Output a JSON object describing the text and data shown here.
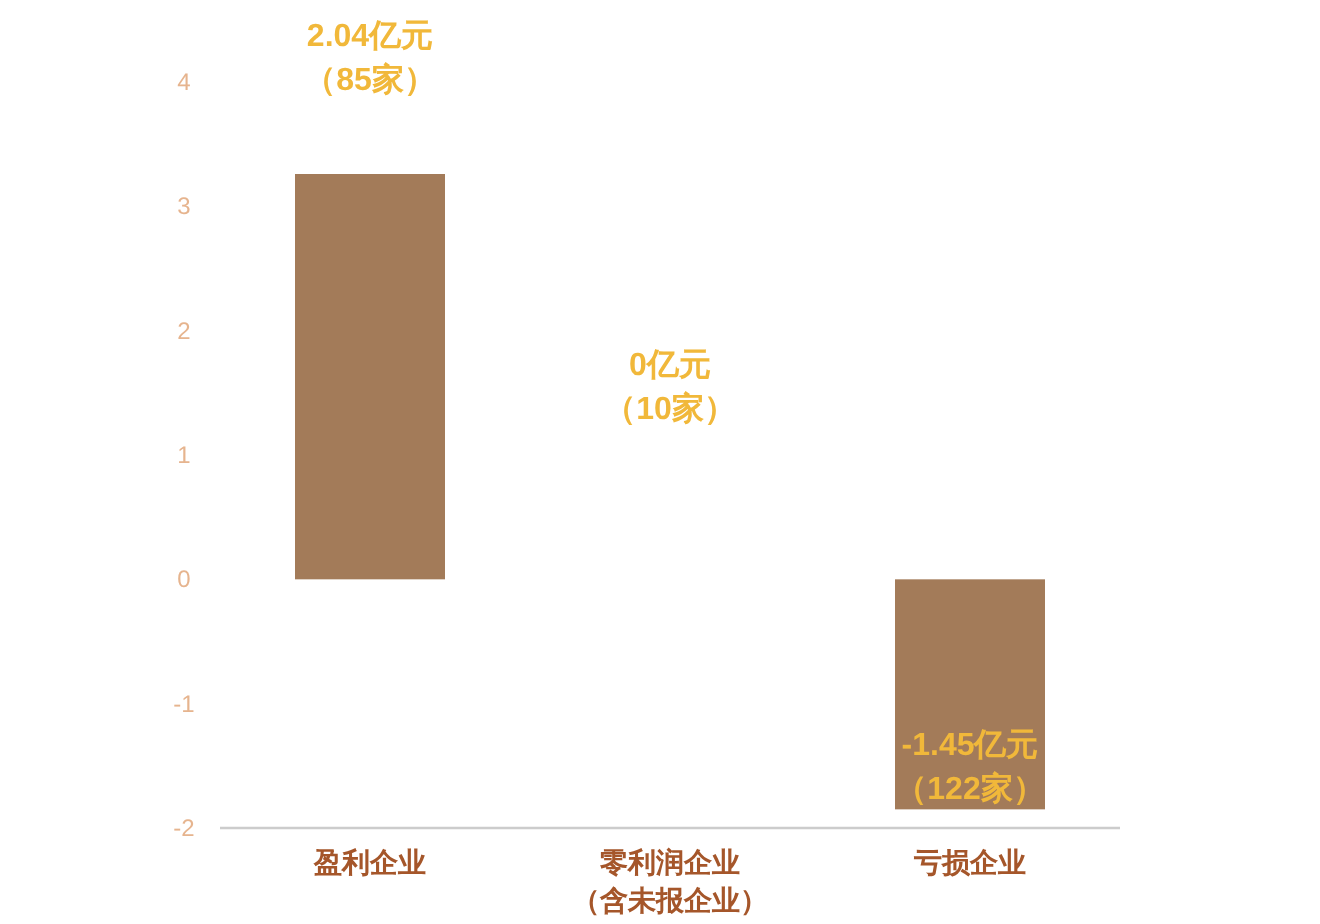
{
  "chart_data": {
    "type": "bar",
    "categories": [
      "盈利企业",
      "零利润企业（含未报企业）",
      "亏损企业"
    ],
    "values": [
      3.26,
      0,
      -1.85
    ],
    "annotations": [
      "2.04亿元（85家）",
      "0亿元（10家）",
      "-1.45亿元（122家）"
    ],
    "color": "#a37b59",
    "ylim": [
      -2,
      4
    ],
    "yticks": [
      -2,
      -1,
      0,
      1,
      2,
      3,
      4
    ],
    "grid": false
  }
}
